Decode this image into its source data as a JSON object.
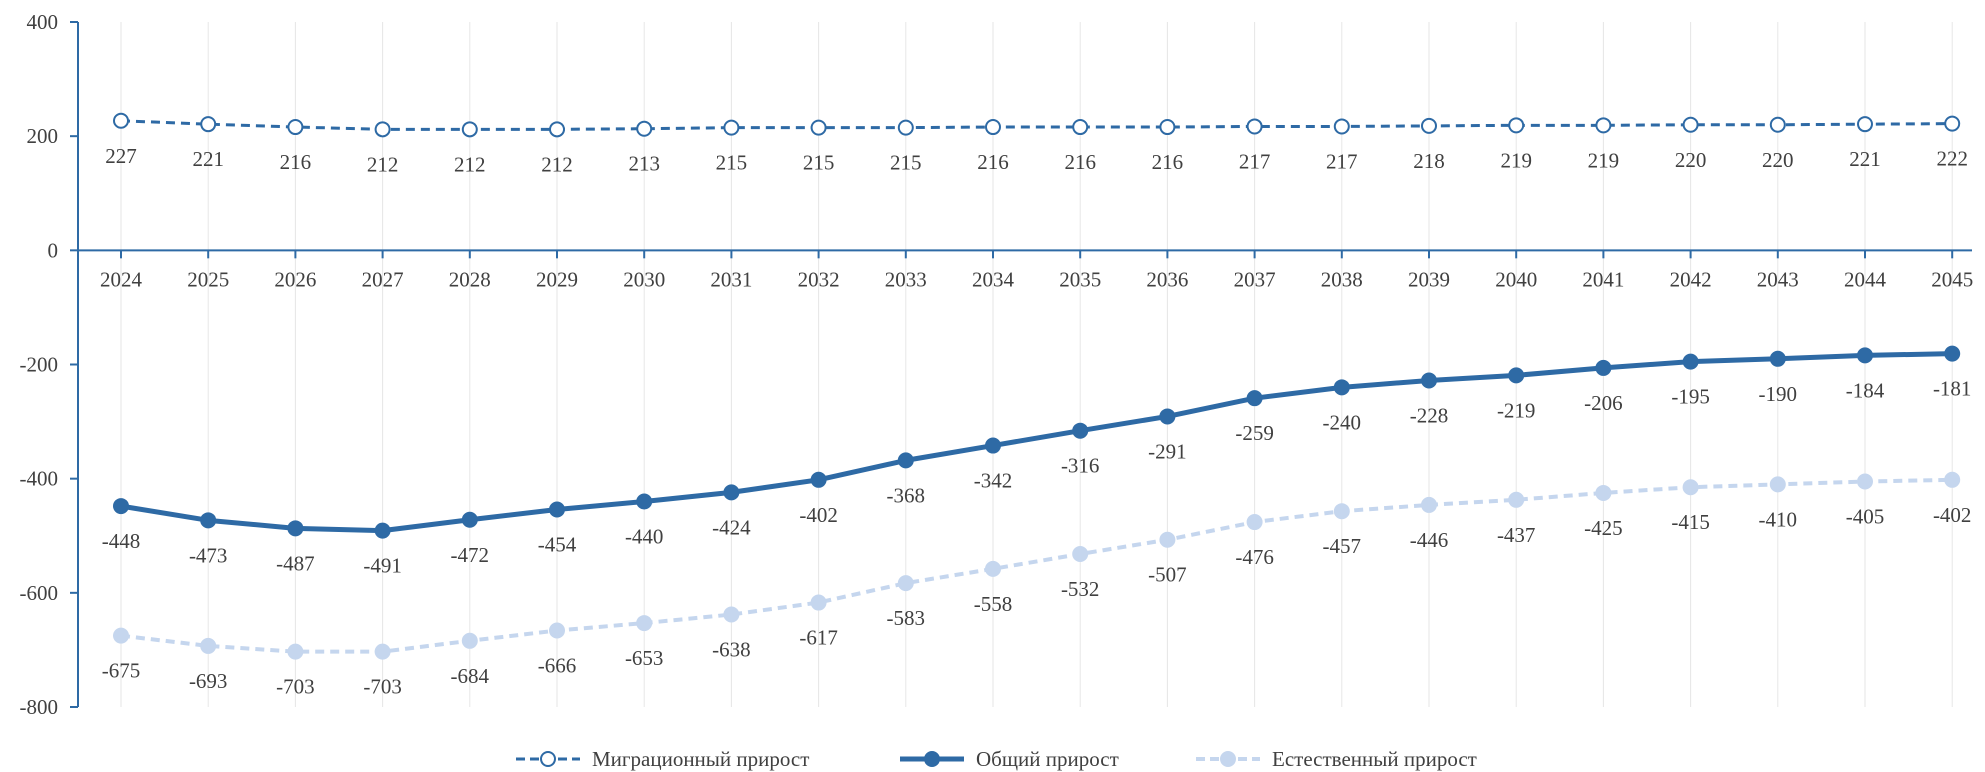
{
  "chart_data": {
    "type": "line",
    "x": [
      "2024",
      "2025",
      "2026",
      "2027",
      "2028",
      "2029",
      "2030",
      "2031",
      "2032",
      "2033",
      "2034",
      "2035",
      "2036",
      "2037",
      "2038",
      "2039",
      "2040",
      "2041",
      "2042",
      "2043",
      "2044",
      "2045"
    ],
    "ylim": [
      -800,
      400
    ],
    "yticks": [
      400,
      200,
      0,
      -200,
      -400,
      -600,
      -800
    ],
    "grid": "vertical",
    "legend_position": "bottom",
    "series": [
      {
        "name": "Миграционный прирост",
        "color": "#2e6aa5",
        "style": "dashed-hollow-markers",
        "values": [
          227,
          221,
          216,
          212,
          212,
          212,
          213,
          215,
          215,
          215,
          216,
          216,
          216,
          217,
          217,
          218,
          219,
          219,
          220,
          220,
          221,
          222
        ]
      },
      {
        "name": "Общий прирост",
        "color": "#2e6aa5",
        "style": "solid-filled-markers",
        "values": [
          -448,
          -473,
          -487,
          -491,
          -472,
          -454,
          -440,
          -424,
          -402,
          -368,
          -342,
          -316,
          -291,
          -259,
          -240,
          -228,
          -219,
          -206,
          -195,
          -190,
          -184,
          -181
        ]
      },
      {
        "name": "Естественный прирост",
        "color": "#c5d6ee",
        "style": "dashed-filled-markers",
        "values": [
          -675,
          -693,
          -703,
          -703,
          -684,
          -666,
          -653,
          -638,
          -617,
          -583,
          -558,
          -532,
          -507,
          -476,
          -457,
          -446,
          -437,
          -425,
          -415,
          -410,
          -405,
          -402
        ]
      }
    ]
  }
}
